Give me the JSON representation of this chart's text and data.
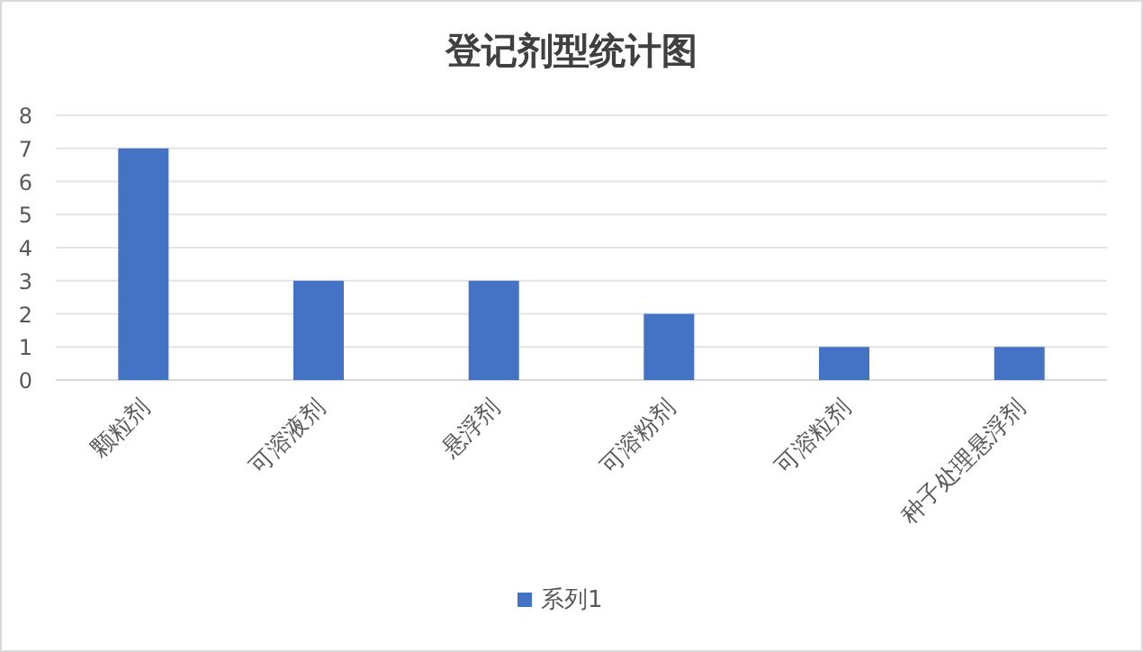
{
  "chart_data": {
    "type": "bar",
    "title": "登记剂型统计图",
    "categories": [
      "颗粒剂",
      "可溶液剂",
      "悬浮剂",
      "可溶粉剂",
      "可溶粒剂",
      "种子处理悬浮剂"
    ],
    "series": [
      {
        "name": "系列1",
        "color": "#4472c4",
        "values": [
          7,
          3,
          3,
          2,
          1,
          1
        ]
      }
    ],
    "ylim": [
      0,
      8
    ],
    "yticks": [
      0,
      1,
      2,
      3,
      4,
      5,
      6,
      7,
      8
    ],
    "grid": "y",
    "legend": "bottom"
  }
}
